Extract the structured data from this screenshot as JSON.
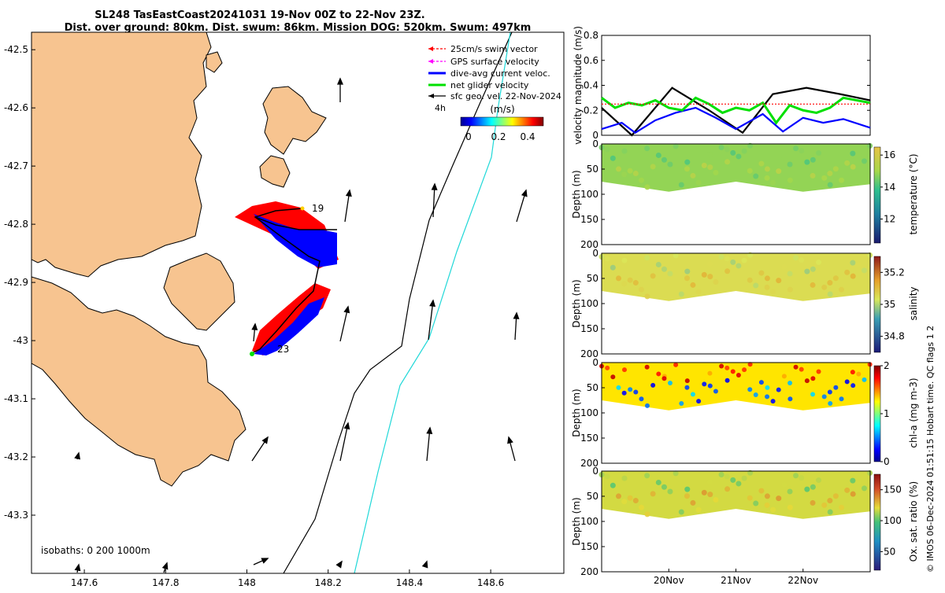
{
  "title": {
    "line1": "SL248 TasEastCoast20241031 19-Nov 00Z to 22-Nov 23Z.",
    "line2": "Dist. over ground: 80km. Dist. swum: 86km. Mission DOG: 520km. Swum: 497km"
  },
  "map": {
    "lat_ticks": [
      "-42.5",
      "-42.6",
      "-42.7",
      "-42.8",
      "-42.9",
      "-43",
      "-43.1",
      "-43.2",
      "-43.3"
    ],
    "lon_ticks": [
      "147.6",
      "147.8",
      "148",
      "148.2",
      "148.4",
      "148.6"
    ],
    "lat_range": [
      -43.4,
      -42.47
    ],
    "lon_range": [
      147.47,
      148.78
    ],
    "isobaths_label": "isobaths: 0   200  1000m",
    "legend": [
      {
        "label": "25cm/s swim vector",
        "color": "#ff0000"
      },
      {
        "label": "GPS surface velocity",
        "color": "#ff00ff"
      },
      {
        "label": "dive-avg current veloc.",
        "color": "#0000ff"
      },
      {
        "label": "net glider velocity",
        "color": "#00e000"
      },
      {
        "label": "sfc geo. vel. 22-Nov-2024",
        "color": "#000000"
      }
    ],
    "time_label": "4h",
    "colorbar_title": "(m/s)",
    "colorbar_ticks": [
      "0",
      "0.2",
      "0.4"
    ],
    "track_labels": [
      "19",
      "23"
    ],
    "land_color": "#f7c490"
  },
  "chart_data": [
    {
      "type": "line",
      "ylabel": "velocity magnitude (m/s)",
      "ylim": [
        0,
        0.8
      ],
      "yticks": [
        "0",
        "0.2",
        "0.4",
        "0.6",
        "0.8"
      ],
      "x_days": [
        0,
        4
      ],
      "series": [
        {
          "name": "sfc geo. vel.",
          "color": "#000000",
          "x": [
            0,
            0.45,
            1.05,
            1.6,
            2.1,
            2.55,
            3.05,
            3.55,
            4.0
          ],
          "values": [
            0.22,
            0.0,
            0.38,
            0.2,
            0.02,
            0.33,
            0.38,
            0.33,
            0.28
          ]
        },
        {
          "name": "dive-avg current",
          "color": "#0000ff",
          "x": [
            0,
            0.3,
            0.5,
            0.8,
            1.1,
            1.4,
            1.7,
            2.0,
            2.4,
            2.7,
            3.0,
            3.3,
            3.6,
            4.0
          ],
          "values": [
            0.05,
            0.1,
            0.02,
            0.12,
            0.18,
            0.22,
            0.14,
            0.05,
            0.17,
            0.03,
            0.14,
            0.1,
            0.13,
            0.06
          ]
        },
        {
          "name": "net glider velocity",
          "color": "#00e000",
          "x": [
            0,
            0.2,
            0.4,
            0.6,
            0.8,
            1.0,
            1.2,
            1.4,
            1.6,
            1.8,
            2.0,
            2.2,
            2.4,
            2.6,
            2.8,
            3.0,
            3.2,
            3.4,
            3.6,
            3.8,
            4.0
          ],
          "values": [
            0.3,
            0.22,
            0.26,
            0.24,
            0.28,
            0.22,
            0.2,
            0.3,
            0.25,
            0.18,
            0.22,
            0.2,
            0.26,
            0.1,
            0.24,
            0.2,
            0.18,
            0.22,
            0.3,
            0.28,
            0.26
          ]
        },
        {
          "name": "25cm/s swim",
          "color": "#ff0000",
          "x": [
            0,
            4
          ],
          "values": [
            0.25,
            0.25
          ]
        }
      ]
    },
    {
      "type": "heatmap",
      "variable": "temperature",
      "ylabel": "Depth (m)",
      "ylim": [
        0,
        200
      ],
      "yticks": [
        "0",
        "50",
        "100",
        "150",
        "200"
      ],
      "clabel": "temperature (°C)",
      "cticks": [
        "12",
        "14",
        "16"
      ],
      "crange": [
        10.5,
        16.5
      ],
      "typical_value": 14.8,
      "dive_depth": [
        75,
        95,
        75,
        95,
        80
      ]
    },
    {
      "type": "heatmap",
      "variable": "salinity",
      "ylabel": "Depth (m)",
      "ylim": [
        0,
        200
      ],
      "yticks": [
        "0",
        "50",
        "100",
        "150",
        "200"
      ],
      "clabel": "salinity",
      "cticks": [
        "34.8",
        "35",
        "35.2"
      ],
      "crange": [
        34.7,
        35.3
      ],
      "typical_value": 35.05,
      "dive_depth": [
        75,
        95,
        75,
        95,
        80
      ]
    },
    {
      "type": "heatmap",
      "variable": "chl-a",
      "ylabel": "Depth (m)",
      "ylim": [
        0,
        200
      ],
      "yticks": [
        "0",
        "50",
        "100",
        "150",
        "200"
      ],
      "clabel": "chl-a (mg m-3)",
      "cticks": [
        "0",
        "1",
        "2"
      ],
      "crange": [
        0,
        2
      ],
      "typical_value": 1.3,
      "dive_depth": [
        75,
        95,
        75,
        95,
        80
      ]
    },
    {
      "type": "heatmap",
      "variable": "oxygen saturation",
      "ylabel": "Depth (m)",
      "ylim": [
        0,
        200
      ],
      "yticks": [
        "0",
        "50",
        "100",
        "150",
        "200"
      ],
      "clabel": "Ox. sat. ratio (%)",
      "cticks": [
        "50",
        "100",
        "150"
      ],
      "crange": [
        20,
        175
      ],
      "typical_value": 118,
      "dive_depth": [
        75,
        95,
        75,
        95,
        80
      ]
    }
  ],
  "time_axis": {
    "labels": [
      "20Nov",
      "21Nov",
      "22Nov"
    ],
    "positions_days": [
      1,
      2,
      3
    ]
  },
  "footer": "© IMOS 06-Dec-2024 01:51:15 Hobart time. QC flags 1  2"
}
